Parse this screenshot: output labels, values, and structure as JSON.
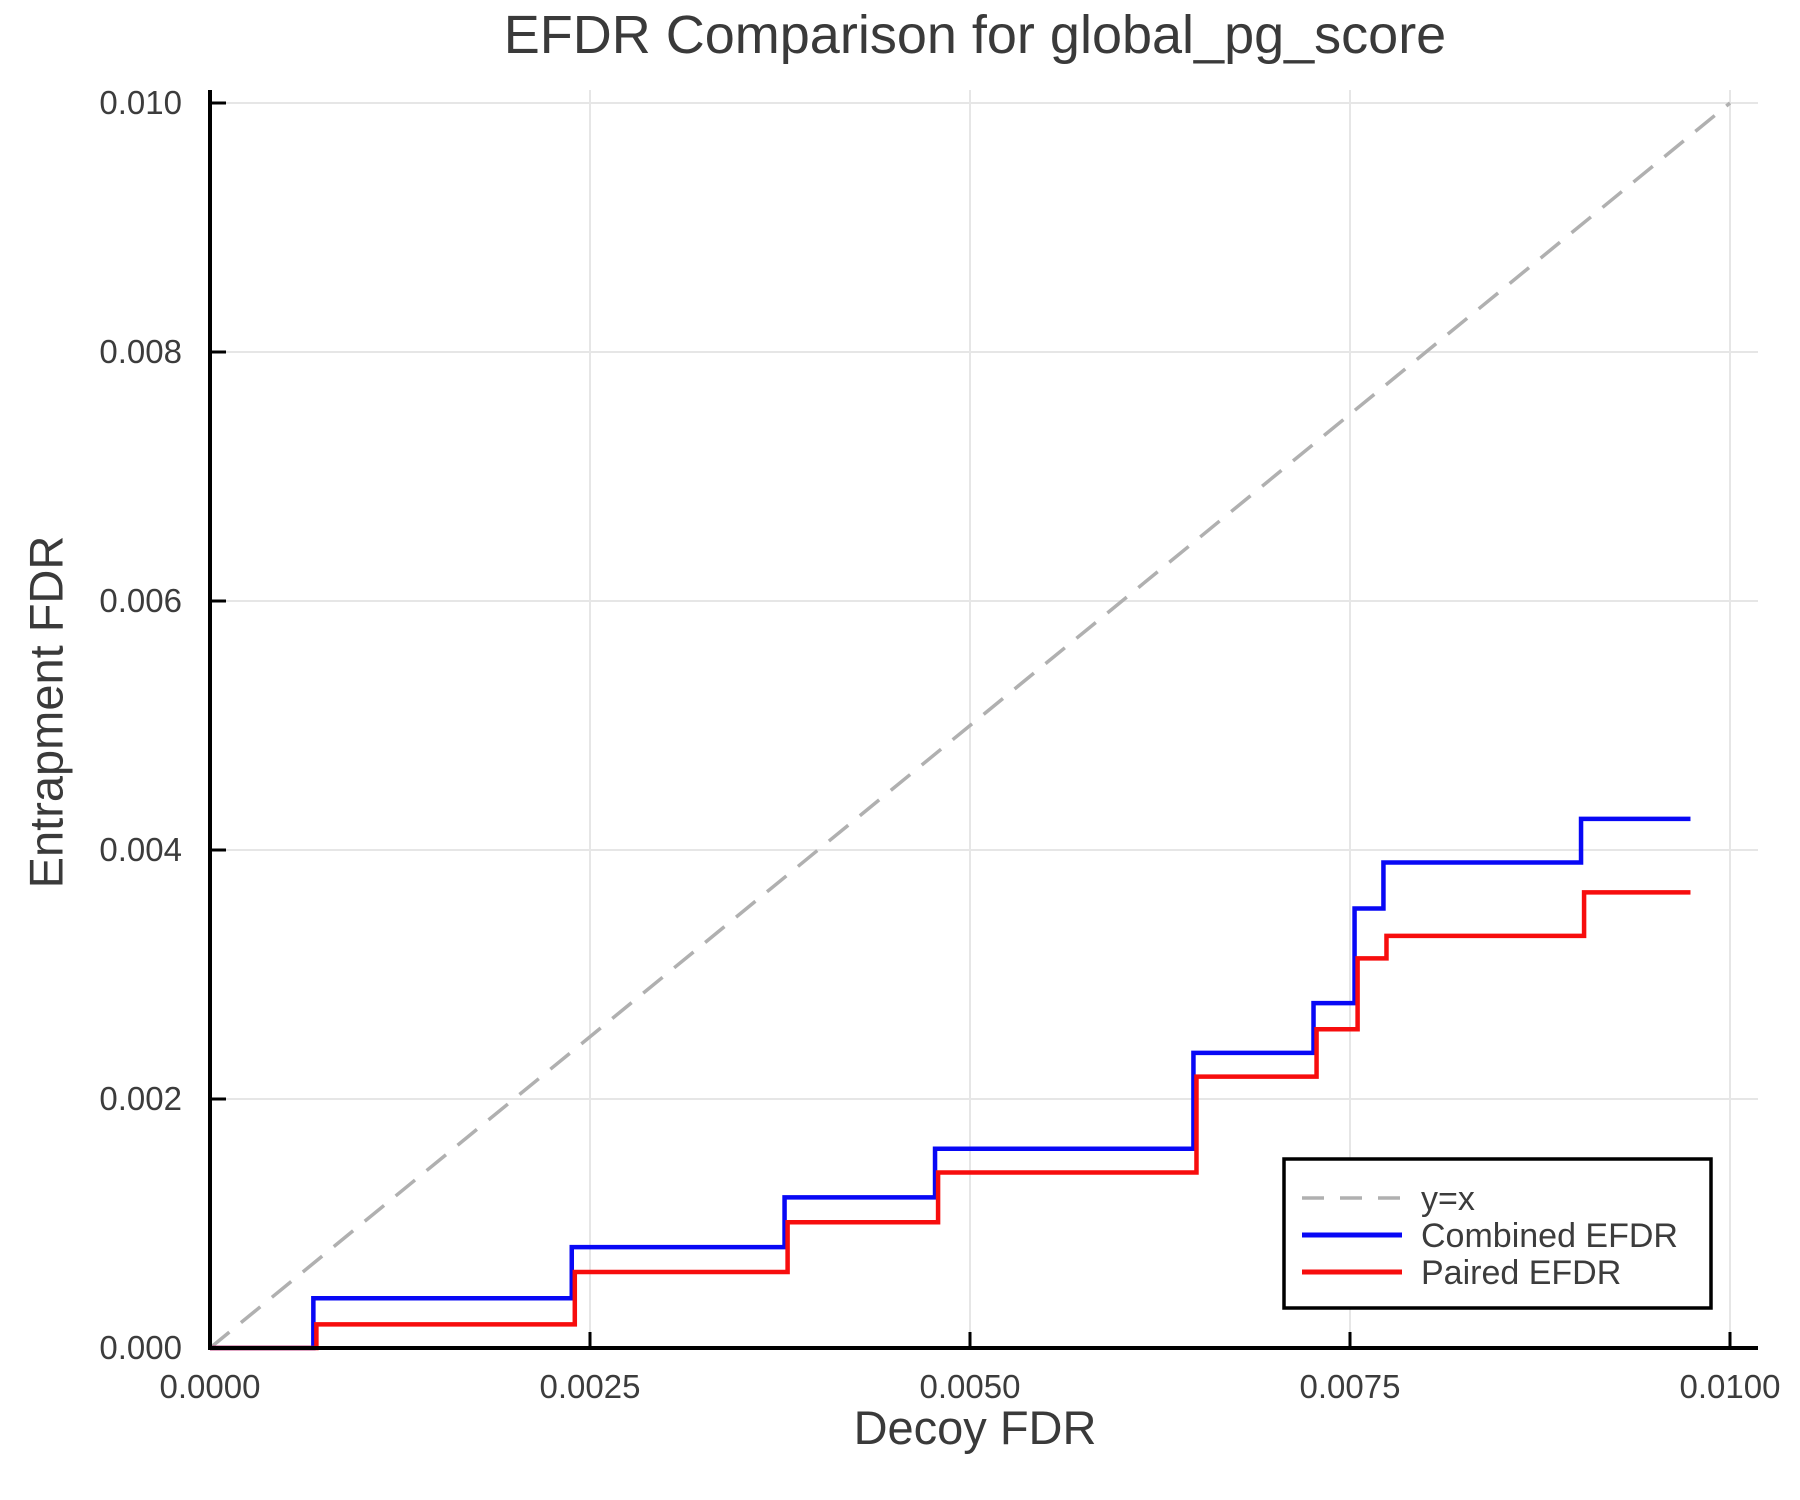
{
  "chart_data": {
    "type": "line",
    "title": "EFDR Comparison for global_pg_score",
    "xlabel": "Decoy FDR",
    "ylabel": "Entrapment FDR",
    "xlim": [
      0.0,
      0.0102
    ],
    "ylim": [
      0.0,
      0.0101
    ],
    "grid": true,
    "legend_position": "lower right",
    "xticks": [
      {
        "value": 0.0,
        "label": "0.0000"
      },
      {
        "value": 0.0025,
        "label": "0.0025"
      },
      {
        "value": 0.005,
        "label": "0.0050"
      },
      {
        "value": 0.0075,
        "label": "0.0075"
      },
      {
        "value": 0.01,
        "label": "0.0100"
      }
    ],
    "yticks": [
      {
        "value": 0.0,
        "label": "0.000"
      },
      {
        "value": 0.002,
        "label": "0.002"
      },
      {
        "value": 0.004,
        "label": "0.004"
      },
      {
        "value": 0.006,
        "label": "0.006"
      },
      {
        "value": 0.008,
        "label": "0.008"
      },
      {
        "value": 0.01,
        "label": "0.010"
      }
    ],
    "colors": {
      "identity": "#b0b0b0",
      "combined": "#0808f5",
      "paired": "#f70d0d",
      "grid": "#e6e6e6",
      "spine": "#000000",
      "text": "#3c3c3c"
    },
    "series": [
      {
        "name": "y=x",
        "style": "dashed",
        "color": "#b0b0b0",
        "width": 3.5,
        "points": [
          [
            0.0,
            0.0
          ],
          [
            0.01,
            0.01
          ]
        ]
      },
      {
        "name": "Combined EFDR",
        "style": "solid",
        "color": "#0808f5",
        "width": 4.5,
        "points": [
          [
            0.0,
            0.0
          ],
          [
            0.00068,
            0.0
          ],
          [
            0.00068,
            0.0004
          ],
          [
            0.00238,
            0.0004
          ],
          [
            0.00238,
            0.00081
          ],
          [
            0.00378,
            0.00081
          ],
          [
            0.00378,
            0.00121
          ],
          [
            0.00477,
            0.00121
          ],
          [
            0.00477,
            0.0016
          ],
          [
            0.00647,
            0.0016
          ],
          [
            0.00647,
            0.00237
          ],
          [
            0.00726,
            0.00237
          ],
          [
            0.00726,
            0.00277
          ],
          [
            0.00753,
            0.00277
          ],
          [
            0.00753,
            0.00353
          ],
          [
            0.00772,
            0.00353
          ],
          [
            0.00772,
            0.0039
          ],
          [
            0.00902,
            0.0039
          ],
          [
            0.00902,
            0.00425
          ],
          [
            0.00974,
            0.00425
          ]
        ]
      },
      {
        "name": "Paired EFDR",
        "style": "solid",
        "color": "#f70d0d",
        "width": 4.5,
        "points": [
          [
            0.0,
            0.0
          ],
          [
            0.0007,
            0.0
          ],
          [
            0.0007,
            0.00019
          ],
          [
            0.0024,
            0.00019
          ],
          [
            0.0024,
            0.00061
          ],
          [
            0.0038,
            0.00061
          ],
          [
            0.0038,
            0.00101
          ],
          [
            0.00479,
            0.00101
          ],
          [
            0.00479,
            0.00141
          ],
          [
            0.00649,
            0.00141
          ],
          [
            0.00649,
            0.00218
          ],
          [
            0.00728,
            0.00218
          ],
          [
            0.00728,
            0.00256
          ],
          [
            0.00755,
            0.00256
          ],
          [
            0.00755,
            0.00313
          ],
          [
            0.00774,
            0.00313
          ],
          [
            0.00774,
            0.00331
          ],
          [
            0.00904,
            0.00331
          ],
          [
            0.00904,
            0.00366
          ],
          [
            0.00974,
            0.00366
          ]
        ]
      }
    ]
  }
}
